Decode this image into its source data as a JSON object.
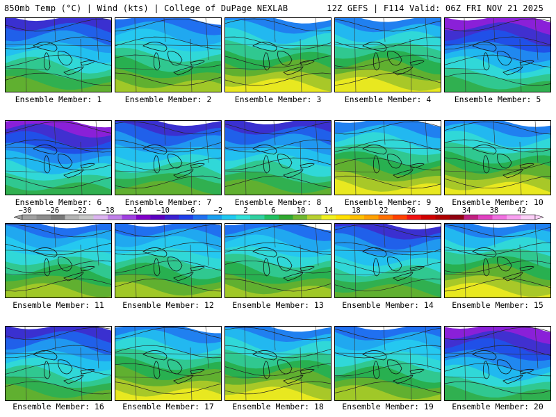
{
  "header": {
    "left": "850mb Temp (°C) | Wind (kts) | College of DuPage NEXLAB",
    "right": "12Z GEFS | F114 Valid: 06Z FRI NOV 21 2025"
  },
  "members": [
    {
      "label": "Ensemble Member: 1",
      "style": "cool"
    },
    {
      "label": "Ensemble Member: 2",
      "style": "mild"
    },
    {
      "label": "Ensemble Member: 3",
      "style": "warm"
    },
    {
      "label": "Ensemble Member: 4",
      "style": "warm"
    },
    {
      "label": "Ensemble Member: 5",
      "style": "cold"
    },
    {
      "label": "Ensemble Member: 6",
      "style": "cold"
    },
    {
      "label": "Ensemble Member: 7",
      "style": "cool"
    },
    {
      "label": "Ensemble Member: 8",
      "style": "cool"
    },
    {
      "label": "Ensemble Member: 9",
      "style": "warm"
    },
    {
      "label": "Ensemble Member: 10",
      "style": "warm"
    },
    {
      "label": "Ensemble Member: 11",
      "style": "mild"
    },
    {
      "label": "Ensemble Member: 12",
      "style": "mild"
    },
    {
      "label": "Ensemble Member: 13",
      "style": "mild"
    },
    {
      "label": "Ensemble Member: 14",
      "style": "cool"
    },
    {
      "label": "Ensemble Member: 15",
      "style": "warm"
    },
    {
      "label": "Ensemble Member: 16",
      "style": "cool"
    },
    {
      "label": "Ensemble Member: 17",
      "style": "warm"
    },
    {
      "label": "Ensemble Member: 18",
      "style": "warm"
    },
    {
      "label": "Ensemble Member: 19",
      "style": "mild"
    },
    {
      "label": "Ensemble Member: 20",
      "style": "cold"
    }
  ],
  "colorbar": {
    "ticks": [
      "−30",
      "−26",
      "−22",
      "−18",
      "−14",
      "−10",
      "−6",
      "−2",
      "2",
      "6",
      "10",
      "14",
      "18",
      "22",
      "26",
      "30",
      "34",
      "38",
      "42"
    ],
    "colors": [
      "#a0a0a0",
      "#8c8c8c",
      "#787878",
      "#b4b4b4",
      "#c8c8c8",
      "#dcb4f0",
      "#c080e8",
      "#a040e0",
      "#8000c8",
      "#5a00c0",
      "#3c20d0",
      "#2040e8",
      "#2070f0",
      "#1aa0f0",
      "#20c8f0",
      "#30e0d8",
      "#30d0a0",
      "#20c060",
      "#30a830",
      "#70b830",
      "#b8d030",
      "#f0f020",
      "#ffe000",
      "#ffc000",
      "#ffa000",
      "#ff7000",
      "#ff4000",
      "#f01010",
      "#d00000",
      "#b00000",
      "#900010",
      "#c02080",
      "#e040c0",
      "#f070e0",
      "#f8a0f0",
      "#fcd0f8"
    ]
  }
}
